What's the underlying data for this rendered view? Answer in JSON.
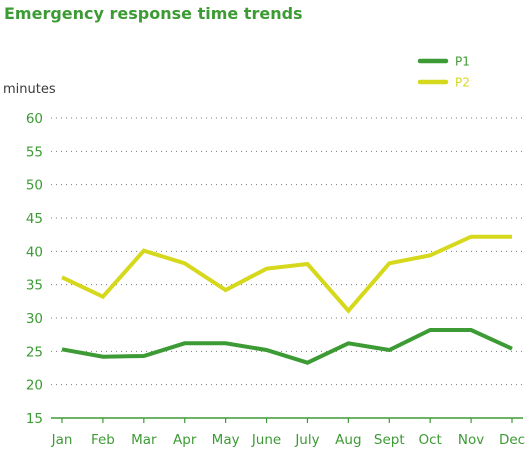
{
  "chart_data": {
    "type": "line",
    "title": "Emergency response time trends",
    "ylabel": "minutes",
    "xlabel": "",
    "categories": [
      "Jan",
      "Feb",
      "Mar",
      "Apr",
      "May",
      "June",
      "July",
      "Aug",
      "Sept",
      "Oct",
      "Nov",
      "Dec"
    ],
    "ylim": [
      15,
      60
    ],
    "yticks": [
      15,
      20,
      25,
      30,
      35,
      40,
      45,
      50,
      55,
      60
    ],
    "grid": true,
    "legend_position": "top-right",
    "series": [
      {
        "name": "P1",
        "color": "#3d9b35",
        "values": [
          25.3,
          24.2,
          24.3,
          26.2,
          26.2,
          25.2,
          23.3,
          26.2,
          25.2,
          28.2,
          28.2,
          25.4
        ]
      },
      {
        "name": "P2",
        "color": "#d6d81c",
        "values": [
          36.1,
          33.2,
          40.1,
          38.2,
          34.2,
          37.4,
          38.1,
          31.1,
          38.2,
          39.4,
          42.2,
          42.2
        ]
      }
    ]
  }
}
